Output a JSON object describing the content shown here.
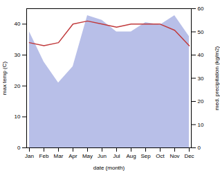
{
  "chart_data": {
    "type": "line",
    "categories": [
      "Jan",
      "Feb",
      "Mar",
      "Apr",
      "May",
      "Jun",
      "Jul",
      "Aug",
      "Sep",
      "Oct",
      "Nov",
      "Dec"
    ],
    "xlabel": "date (month)",
    "ylabel": "max temp (C)",
    "y2label": "med. precipitation (kg/m2)",
    "ylim": [
      0,
      45
    ],
    "yticks": [
      0,
      10,
      20,
      30,
      40
    ],
    "y2lim": [
      0,
      60
    ],
    "y2ticks": [
      0,
      10,
      20,
      30,
      40,
      50,
      60
    ],
    "series": [
      {
        "type": "area",
        "axis": "y2",
        "color": "#b8bfe8",
        "values": [
          50,
          37,
          28,
          35,
          57,
          55,
          50,
          50,
          54,
          53,
          57,
          48
        ]
      },
      {
        "type": "line",
        "color": "#c0393b",
        "values": [
          34,
          33,
          34,
          40,
          41,
          40,
          39,
          40,
          40,
          40,
          38,
          33
        ]
      }
    ]
  }
}
